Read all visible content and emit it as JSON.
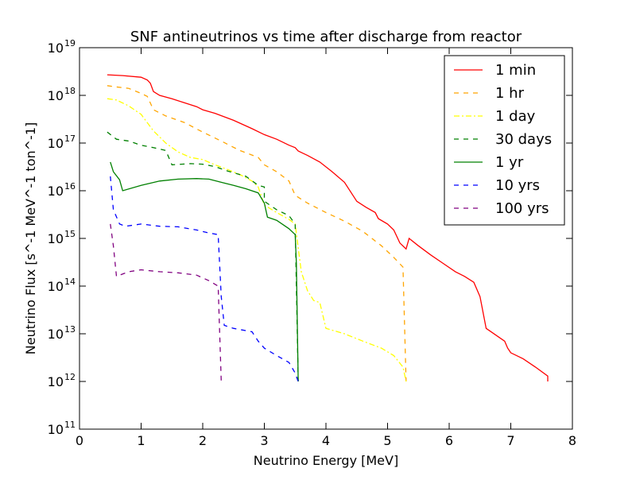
{
  "chart_data": {
    "type": "line",
    "title": "SNF antineutrinos vs time after discharge from reactor",
    "xlabel": "Neutrino Energy [MeV]",
    "ylabel": "Neutrino Flux [s^-1 MeV^-1 ton^-1]",
    "xlim": [
      0,
      8
    ],
    "ylim": [
      100000000000.0,
      1e+19
    ],
    "yscale": "log",
    "x_ticks": [
      "0",
      "1",
      "2",
      "3",
      "4",
      "5",
      "6",
      "7",
      "8"
    ],
    "y_ticks": [
      {
        "base": "10",
        "exp": "11"
      },
      {
        "base": "10",
        "exp": "12"
      },
      {
        "base": "10",
        "exp": "13"
      },
      {
        "base": "10",
        "exp": "14"
      },
      {
        "base": "10",
        "exp": "15"
      },
      {
        "base": "10",
        "exp": "16"
      },
      {
        "base": "10",
        "exp": "17"
      },
      {
        "base": "10",
        "exp": "18"
      },
      {
        "base": "10",
        "exp": "19"
      }
    ],
    "grid": false,
    "legend_position": "top-right",
    "series": [
      {
        "name": "1 min",
        "color": "#ff0000",
        "dash": "solid",
        "points": [
          [
            0.45,
            2.7e+18
          ],
          [
            0.7,
            2.6e+18
          ],
          [
            1.0,
            2.4e+18
          ],
          [
            1.1,
            2.1e+18
          ],
          [
            1.15,
            1.8e+18
          ],
          [
            1.2,
            1.2e+18
          ],
          [
            1.3,
            1e+18
          ],
          [
            1.5,
            8.5e+17
          ],
          [
            1.7,
            7e+17
          ],
          [
            1.9,
            5.8e+17
          ],
          [
            2.0,
            5e+17
          ],
          [
            2.2,
            4.2e+17
          ],
          [
            2.5,
            3e+17
          ],
          [
            2.8,
            2e+17
          ],
          [
            3.0,
            1.5e+17
          ],
          [
            3.2,
            1.2e+17
          ],
          [
            3.4,
            9e+16
          ],
          [
            3.5,
            8e+16
          ],
          [
            3.55,
            6.8e+16
          ],
          [
            3.7,
            5.5e+16
          ],
          [
            3.9,
            4e+16
          ],
          [
            4.1,
            2.5e+16
          ],
          [
            4.3,
            1.5e+16
          ],
          [
            4.5,
            6000000000000000.0
          ],
          [
            4.65,
            4500000000000000.0
          ],
          [
            4.8,
            3500000000000000.0
          ],
          [
            4.85,
            2600000000000000.0
          ],
          [
            5.0,
            2000000000000000.0
          ],
          [
            5.1,
            1500000000000000.0
          ],
          [
            5.2,
            800000000000000.0
          ],
          [
            5.3,
            600000000000000.0
          ],
          [
            5.35,
            1000000000000000.0
          ],
          [
            5.5,
            700000000000000.0
          ],
          [
            5.7,
            450000000000000.0
          ],
          [
            5.9,
            300000000000000.0
          ],
          [
            6.1,
            200000000000000.0
          ],
          [
            6.25,
            160000000000000.0
          ],
          [
            6.4,
            120000000000000.0
          ],
          [
            6.5,
            60000000000000.0
          ],
          [
            6.6,
            13000000000000.0
          ],
          [
            6.9,
            7000000000000.0
          ],
          [
            6.95,
            5000000000000.0
          ],
          [
            7.0,
            4000000000000.0
          ],
          [
            7.2,
            3000000000000.0
          ],
          [
            7.4,
            2000000000000.0
          ],
          [
            7.6,
            1300000000000.0
          ],
          [
            7.6,
            1000000000000.0
          ]
        ]
      },
      {
        "name": "1 hr",
        "color": "#ffa500",
        "dash": "dashed",
        "points": [
          [
            0.45,
            1.6e+18
          ],
          [
            0.6,
            1.5e+18
          ],
          [
            0.8,
            1.4e+18
          ],
          [
            1.0,
            1.1e+18
          ],
          [
            1.1,
            9.5e+17
          ],
          [
            1.2,
            5e+17
          ],
          [
            1.4,
            3.7e+17
          ],
          [
            1.7,
            2.7e+17
          ],
          [
            2.0,
            1.7e+17
          ],
          [
            2.3,
            1.1e+17
          ],
          [
            2.6,
            7e+16
          ],
          [
            2.9,
            5e+16
          ],
          [
            3.0,
            3.5e+16
          ],
          [
            3.2,
            2.5e+16
          ],
          [
            3.4,
            1.6e+16
          ],
          [
            3.5,
            8000000000000000.0
          ],
          [
            3.7,
            5500000000000000.0
          ],
          [
            4.0,
            3500000000000000.0
          ],
          [
            4.3,
            2300000000000000.0
          ],
          [
            4.6,
            1400000000000000.0
          ],
          [
            4.9,
            700000000000000.0
          ],
          [
            5.1,
            400000000000000.0
          ],
          [
            5.25,
            250000000000000.0
          ],
          [
            5.3,
            1000000000000.0
          ]
        ]
      },
      {
        "name": "1 day",
        "color": "#ffff00",
        "dash": "dash-dot",
        "points": [
          [
            0.45,
            8.5e+17
          ],
          [
            0.6,
            8e+17
          ],
          [
            0.8,
            6e+17
          ],
          [
            1.0,
            4e+17
          ],
          [
            1.2,
            1.8e+17
          ],
          [
            1.4,
            1e+17
          ],
          [
            1.6,
            6.5e+16
          ],
          [
            1.8,
            5e+16
          ],
          [
            2.0,
            4.5e+16
          ],
          [
            2.2,
            3.5e+16
          ],
          [
            2.4,
            2.8e+16
          ],
          [
            2.6,
            2.2e+16
          ],
          [
            2.8,
            1.6e+16
          ],
          [
            2.9,
            1.2e+16
          ],
          [
            3.0,
            5000000000000000.0
          ],
          [
            3.2,
            3500000000000000.0
          ],
          [
            3.4,
            2500000000000000.0
          ],
          [
            3.5,
            2000000000000000.0
          ],
          [
            3.6,
            200000000000000.0
          ],
          [
            3.7,
            80000000000000.0
          ],
          [
            3.8,
            50000000000000.0
          ],
          [
            3.9,
            45000000000000.0
          ],
          [
            4.0,
            13000000000000.0
          ],
          [
            4.3,
            10000000000000.0
          ],
          [
            4.6,
            7000000000000.0
          ],
          [
            4.9,
            5000000000000.0
          ],
          [
            5.1,
            3500000000000.0
          ],
          [
            5.25,
            2000000000000.0
          ],
          [
            5.3,
            1000000000000.0
          ]
        ]
      },
      {
        "name": "30 days",
        "color": "#008000",
        "dash": "dashed",
        "points": [
          [
            0.45,
            1.7e+17
          ],
          [
            0.6,
            1.2e+17
          ],
          [
            0.8,
            1.1e+17
          ],
          [
            1.0,
            9e+16
          ],
          [
            1.2,
            8e+16
          ],
          [
            1.4,
            7e+16
          ],
          [
            1.5,
            3.5e+16
          ],
          [
            1.8,
            3.7e+16
          ],
          [
            2.0,
            3.6e+16
          ],
          [
            2.2,
            3.2e+16
          ],
          [
            2.4,
            2.6e+16
          ],
          [
            2.7,
            2e+16
          ],
          [
            2.9,
            1.3e+16
          ],
          [
            3.0,
            1.2e+16
          ],
          [
            3.0,
            6000000000000000.0
          ],
          [
            3.2,
            4000000000000000.0
          ],
          [
            3.4,
            3000000000000000.0
          ],
          [
            3.5,
            2000000000000000.0
          ],
          [
            3.55,
            1000000000000.0
          ]
        ]
      },
      {
        "name": "1 yr",
        "color": "#008000",
        "dash": "solid",
        "points": [
          [
            0.5,
            4e+16
          ],
          [
            0.55,
            2.5e+16
          ],
          [
            0.65,
            1.7e+16
          ],
          [
            0.7,
            1e+16
          ],
          [
            1.0,
            1.3e+16
          ],
          [
            1.3,
            1.6e+16
          ],
          [
            1.6,
            1.75e+16
          ],
          [
            1.9,
            1.8e+16
          ],
          [
            2.1,
            1.75e+16
          ],
          [
            2.3,
            1.5e+16
          ],
          [
            2.5,
            1.3e+16
          ],
          [
            2.7,
            1.1e+16
          ],
          [
            2.9,
            9000000000000000.0
          ],
          [
            3.0,
            5500000000000000.0
          ],
          [
            3.05,
            2800000000000000.0
          ],
          [
            3.2,
            2400000000000000.0
          ],
          [
            3.4,
            1600000000000000.0
          ],
          [
            3.5,
            1200000000000000.0
          ],
          [
            3.52,
            300000000000000.0
          ],
          [
            3.55,
            1000000000000.0
          ]
        ]
      },
      {
        "name": "10 yrs",
        "color": "#0000ff",
        "dash": "dashed",
        "points": [
          [
            0.5,
            2e+16
          ],
          [
            0.55,
            4000000000000000.0
          ],
          [
            0.65,
            2000000000000000.0
          ],
          [
            0.75,
            1800000000000000.0
          ],
          [
            1.0,
            2000000000000000.0
          ],
          [
            1.3,
            1800000000000000.0
          ],
          [
            1.6,
            1750000000000000.0
          ],
          [
            1.9,
            1500000000000000.0
          ],
          [
            2.1,
            1300000000000000.0
          ],
          [
            2.25,
            1200000000000000.0
          ],
          [
            2.3,
            60000000000000.0
          ],
          [
            2.35,
            15000000000000.0
          ],
          [
            2.5,
            13000000000000.0
          ],
          [
            2.8,
            11000000000000.0
          ],
          [
            2.9,
            7000000000000.0
          ],
          [
            3.0,
            5000000000000.0
          ],
          [
            3.2,
            3500000000000.0
          ],
          [
            3.4,
            2500000000000.0
          ],
          [
            3.5,
            1500000000000.0
          ],
          [
            3.55,
            1000000000000.0
          ]
        ]
      },
      {
        "name": "100 yrs",
        "color": "#800080",
        "dash": "dashed",
        "points": [
          [
            0.5,
            2000000000000000.0
          ],
          [
            0.55,
            700000000000000.0
          ],
          [
            0.6,
            160000000000000.0
          ],
          [
            0.8,
            200000000000000.0
          ],
          [
            1.0,
            220000000000000.0
          ],
          [
            1.3,
            200000000000000.0
          ],
          [
            1.6,
            190000000000000.0
          ],
          [
            1.9,
            170000000000000.0
          ],
          [
            2.1,
            130000000000000.0
          ],
          [
            2.25,
            100000000000000.0
          ],
          [
            2.3,
            1000000000000.0
          ]
        ]
      }
    ]
  }
}
